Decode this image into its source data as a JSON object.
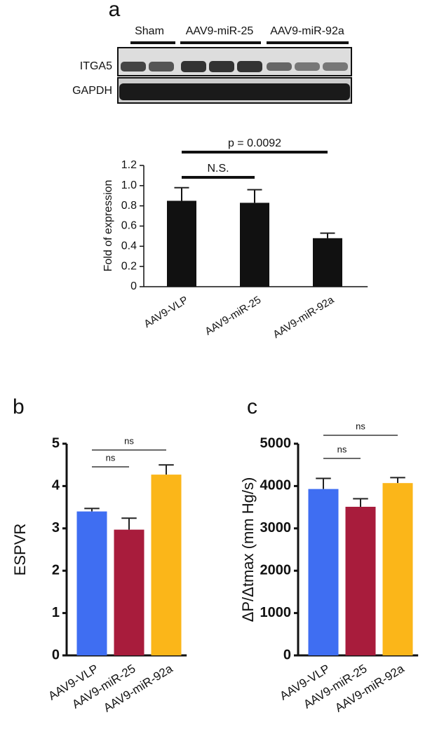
{
  "blot": {
    "panel": "a",
    "lanes": [
      "Sham",
      "AAV9-miR-25",
      "AAV9-miR-92a"
    ],
    "rows": [
      "ITGA5",
      "GAPDH"
    ]
  },
  "chart_data": [
    {
      "type": "bar",
      "ylabel": "Fold of expression",
      "categories": [
        "AAV9-VLP",
        "AAV9-miR-25",
        "AAV9-miR-92a"
      ],
      "values": [
        0.85,
        0.83,
        0.48
      ],
      "errors": [
        0.13,
        0.13,
        0.05
      ],
      "color": "#111111",
      "ylim": [
        0,
        1.2
      ],
      "yticks": [
        0,
        0.2,
        0.4,
        0.6,
        0.8,
        {
          "value": 1,
          "label": "1.0"
        },
        1.2
      ],
      "brackets": [
        "N.S.",
        "p = 0.0092"
      ]
    },
    {
      "type": "bar",
      "panel": "b",
      "ylabel": "ESPVR",
      "categories": [
        "AAV9-VLP",
        "AAV9-miR-25",
        "AAV9-miR-92a"
      ],
      "values": [
        3.4,
        2.97,
        4.27
      ],
      "errors": [
        0.07,
        0.27,
        0.23
      ],
      "colors": [
        "#3f6ef2",
        "#a81c3c",
        "#fbb619"
      ],
      "ylim": [
        0,
        5
      ],
      "yticks": [
        0,
        1,
        2,
        3,
        4,
        5
      ],
      "brackets": [
        "ns",
        "ns"
      ]
    },
    {
      "type": "bar",
      "panel": "c",
      "ylabel": "ΔP/Δtmax (mm Hg/s)",
      "categories": [
        "AAV9-VLP",
        "AAV9-miR-25",
        "AAV9-miR-92a"
      ],
      "values": [
        3930,
        3510,
        4070
      ],
      "errors": [
        250,
        190,
        130
      ],
      "colors": [
        "#3f6ef2",
        "#a81c3c",
        "#fbb619"
      ],
      "ylim": [
        0,
        5000
      ],
      "yticks": [
        0,
        1000,
        2000,
        3000,
        4000,
        5000
      ],
      "brackets": [
        "ns",
        "ns"
      ]
    }
  ]
}
